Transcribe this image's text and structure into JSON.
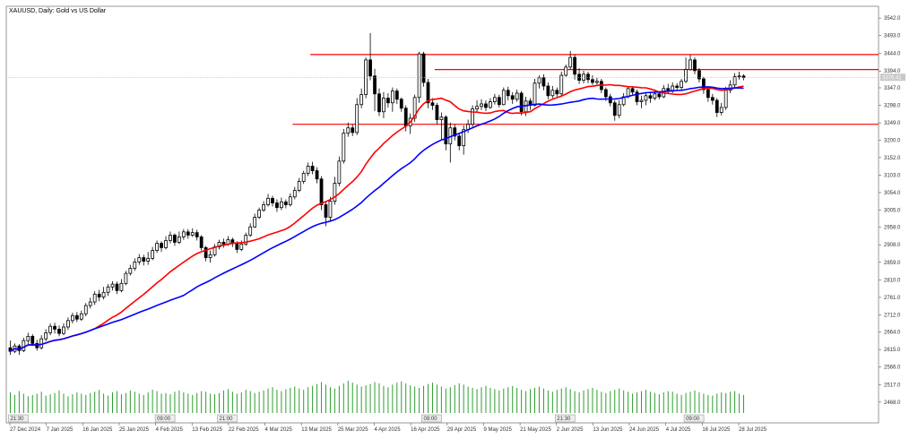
{
  "header": {
    "title": "XAUUSD, Daily:  Gold vs US Dollar"
  },
  "current_price_label": "3376.41",
  "time_markers": [
    "21:30",
    "09:00",
    "21:00",
    "09:00",
    "21:30",
    "09:00"
  ],
  "chart_data": {
    "type": "candlestick",
    "title": "XAUUSD, Daily:  Gold vs US Dollar",
    "x_ticks": [
      "27 Dec 2024",
      "7 Jan 2025",
      "16 Jan 2025",
      "25 Jan 2025",
      "4 Feb 2025",
      "13 Feb 2025",
      "22 Feb 2025",
      "4 Mar 2025",
      "13 Mar 2025",
      "25 Mar 2025",
      "4 Apr 2025",
      "16 Apr 2025",
      "29 Apr 2025",
      "9 May 2025",
      "21 May 2025",
      "2 Jun 2025",
      "13 Jun 2025",
      "24 Jun 2025",
      "4 Jul 2025",
      "16 Jul 2025",
      "28 Jul 2025"
    ],
    "y_ticks": [
      3542.0,
      3493.0,
      3444.0,
      3394.0,
      3347.0,
      3298.0,
      3249.0,
      3200.0,
      3152.0,
      3103.0,
      3054.0,
      3005.0,
      2958.0,
      2908.0,
      2859.0,
      2810.0,
      2761.0,
      2712.0,
      2664.0,
      2615.0,
      2566.0,
      2517.0,
      2468.0
    ],
    "ylim": [
      2445,
      3570
    ],
    "horizontal_levels": [
      {
        "price": 3440,
        "from_index": 68,
        "color": "#ff0000"
      },
      {
        "price": 3398,
        "from_index": 96,
        "color": "#ff0000"
      },
      {
        "price": 3245,
        "from_index": 64,
        "color": "#ff0000"
      }
    ],
    "current_price": 3376.41,
    "series": [
      {
        "name": "",
        "type": "moving_average",
        "color": "#ff0000",
        "window": 20
      },
      {
        "name": "",
        "type": "moving_average",
        "color": "#0000ff",
        "window": 40
      }
    ],
    "candles": [
      {
        "date": "27 Dec 2024",
        "o": 2620,
        "h": 2640,
        "l": 2600,
        "c": 2610
      },
      {
        "c": 2625,
        "h": 2632,
        "l": 2605
      },
      {
        "c": 2612,
        "h": 2630,
        "l": 2600
      },
      {
        "c": 2640,
        "h": 2648,
        "l": 2608
      },
      {
        "c": 2652,
        "h": 2662,
        "l": 2630
      },
      {
        "c": 2632,
        "h": 2658,
        "l": 2625
      },
      {
        "c": 2620,
        "h": 2642,
        "l": 2612
      },
      {
        "c": 2645,
        "h": 2655,
        "l": 2615
      },
      {
        "c": 2662,
        "h": 2672,
        "l": 2638
      },
      {
        "c": 2680,
        "h": 2688,
        "l": 2655
      },
      {
        "c": 2672,
        "h": 2690,
        "l": 2660
      },
      {
        "c": 2660,
        "h": 2682,
        "l": 2652
      },
      {
        "c": 2678,
        "h": 2688,
        "l": 2655
      },
      {
        "c": 2696,
        "h": 2705,
        "l": 2670
      },
      {
        "c": 2710,
        "h": 2718,
        "l": 2688
      },
      {
        "c": 2700,
        "h": 2720,
        "l": 2692
      },
      {
        "c": 2715,
        "h": 2724,
        "l": 2695
      },
      {
        "c": 2738,
        "h": 2745,
        "l": 2708
      },
      {
        "c": 2748,
        "h": 2760,
        "l": 2730
      },
      {
        "c": 2770,
        "h": 2778,
        "l": 2740
      },
      {
        "c": 2762,
        "h": 2782,
        "l": 2750
      },
      {
        "c": 2775,
        "h": 2790,
        "l": 2755
      },
      {
        "c": 2790,
        "h": 2798,
        "l": 2765
      },
      {
        "c": 2798,
        "h": 2806,
        "l": 2780
      },
      {
        "c": 2780,
        "h": 2805,
        "l": 2770
      },
      {
        "c": 2800,
        "h": 2812,
        "l": 2775
      },
      {
        "c": 2828,
        "h": 2835,
        "l": 2795
      },
      {
        "c": 2842,
        "h": 2852,
        "l": 2822
      },
      {
        "c": 2860,
        "h": 2870,
        "l": 2835
      },
      {
        "c": 2872,
        "h": 2882,
        "l": 2852
      },
      {
        "c": 2862,
        "h": 2880,
        "l": 2850
      },
      {
        "c": 2870,
        "h": 2888,
        "l": 2852
      },
      {
        "c": 2892,
        "h": 2902,
        "l": 2865
      },
      {
        "c": 2912,
        "h": 2920,
        "l": 2885
      },
      {
        "c": 2900,
        "h": 2918,
        "l": 2888
      },
      {
        "c": 2920,
        "h": 2932,
        "l": 2895
      },
      {
        "c": 2935,
        "h": 2945,
        "l": 2912
      },
      {
        "c": 2915,
        "h": 2940,
        "l": 2905
      },
      {
        "c": 2930,
        "h": 2945,
        "l": 2910
      },
      {
        "c": 2944,
        "h": 2952,
        "l": 2922
      },
      {
        "c": 2935,
        "h": 2952,
        "l": 2925
      },
      {
        "c": 2942,
        "h": 2954,
        "l": 2930
      },
      {
        "c": 2930,
        "h": 2950,
        "l": 2920
      },
      {
        "c": 2900,
        "h": 2935,
        "l": 2892
      },
      {
        "c": 2872,
        "h": 2905,
        "l": 2862
      },
      {
        "c": 2880,
        "h": 2892,
        "l": 2858
      },
      {
        "c": 2902,
        "h": 2910,
        "l": 2875
      },
      {
        "c": 2915,
        "h": 2922,
        "l": 2895
      },
      {
        "c": 2910,
        "h": 2925,
        "l": 2900
      },
      {
        "c": 2922,
        "h": 2932,
        "l": 2905
      },
      {
        "c": 2912,
        "h": 2928,
        "l": 2902
      },
      {
        "c": 2895,
        "h": 2918,
        "l": 2885
      },
      {
        "c": 2910,
        "h": 2920,
        "l": 2890
      },
      {
        "c": 2935,
        "h": 2942,
        "l": 2905
      },
      {
        "c": 2958,
        "h": 2968,
        "l": 2930
      },
      {
        "c": 2985,
        "h": 2995,
        "l": 2955
      },
      {
        "c": 3005,
        "h": 3012,
        "l": 2980
      },
      {
        "c": 3020,
        "h": 3030,
        "l": 3000
      },
      {
        "c": 3038,
        "h": 3050,
        "l": 3015
      },
      {
        "c": 3025,
        "h": 3045,
        "l": 3015
      },
      {
        "c": 3012,
        "h": 3035,
        "l": 3000
      },
      {
        "c": 3028,
        "h": 3040,
        "l": 3005
      },
      {
        "c": 3020,
        "h": 3035,
        "l": 3010
      },
      {
        "c": 3042,
        "h": 3052,
        "l": 3015
      },
      {
        "c": 3060,
        "h": 3070,
        "l": 3035
      },
      {
        "c": 3085,
        "h": 3095,
        "l": 3055
      },
      {
        "c": 3108,
        "h": 3115,
        "l": 3078
      },
      {
        "c": 3128,
        "h": 3138,
        "l": 3100
      },
      {
        "c": 3115,
        "h": 3140,
        "l": 3105
      },
      {
        "c": 3092,
        "h": 3125,
        "l": 3080
      },
      {
        "c": 3020,
        "h": 3100,
        "l": 3005
      },
      {
        "c": 2985,
        "h": 3030,
        "l": 2960
      },
      {
        "c": 3030,
        "h": 3042,
        "l": 2975
      },
      {
        "c": 3080,
        "h": 3098,
        "l": 3020
      },
      {
        "c": 3142,
        "h": 3155,
        "l": 3072
      },
      {
        "c": 3220,
        "h": 3232,
        "l": 3135
      },
      {
        "c": 3235,
        "h": 3250,
        "l": 3210
      },
      {
        "c": 3222,
        "h": 3245,
        "l": 3212
      },
      {
        "c": 3300,
        "h": 3318,
        "l": 3215
      },
      {
        "c": 3328,
        "h": 3345,
        "l": 3290
      },
      {
        "c": 3425,
        "h": 3432,
        "l": 3318
      },
      {
        "c": 3380,
        "h": 3500,
        "l": 3368
      },
      {
        "c": 3330,
        "h": 3400,
        "l": 3282
      },
      {
        "c": 3280,
        "h": 3345,
        "l": 3268
      },
      {
        "c": 3318,
        "h": 3335,
        "l": 3262
      },
      {
        "c": 3305,
        "h": 3332,
        "l": 3292
      },
      {
        "c": 3338,
        "h": 3348,
        "l": 3280
      },
      {
        "c": 3315,
        "h": 3345,
        "l": 3302
      },
      {
        "c": 3290,
        "h": 3320,
        "l": 3280
      },
      {
        "c": 3240,
        "h": 3298,
        "l": 3225
      },
      {
        "c": 3262,
        "h": 3275,
        "l": 3218
      },
      {
        "c": 3320,
        "h": 3328,
        "l": 3252
      },
      {
        "c": 3442,
        "h": 3448,
        "l": 3305
      },
      {
        "c": 3362,
        "h": 3448,
        "l": 3350
      },
      {
        "c": 3305,
        "h": 3372,
        "l": 3290
      },
      {
        "c": 3298,
        "h": 3318,
        "l": 3285
      },
      {
        "c": 3258,
        "h": 3305,
        "l": 3245
      },
      {
        "c": 3265,
        "h": 3278,
        "l": 3200
      },
      {
        "c": 3190,
        "h": 3270,
        "l": 3172
      },
      {
        "c": 3235,
        "h": 3250,
        "l": 3138
      },
      {
        "c": 3212,
        "h": 3245,
        "l": 3200
      },
      {
        "c": 3185,
        "h": 3222,
        "l": 3172
      },
      {
        "c": 3230,
        "h": 3242,
        "l": 3160
      },
      {
        "c": 3245,
        "h": 3258,
        "l": 3220
      },
      {
        "c": 3288,
        "h": 3298,
        "l": 3238
      },
      {
        "c": 3295,
        "h": 3312,
        "l": 3280
      },
      {
        "c": 3302,
        "h": 3315,
        "l": 3285
      },
      {
        "c": 3292,
        "h": 3312,
        "l": 3282
      },
      {
        "c": 3308,
        "h": 3318,
        "l": 3288
      },
      {
        "c": 3320,
        "h": 3330,
        "l": 3300
      },
      {
        "c": 3300,
        "h": 3328,
        "l": 3292
      },
      {
        "c": 3340,
        "h": 3348,
        "l": 3298
      },
      {
        "c": 3325,
        "h": 3350,
        "l": 3312
      },
      {
        "c": 3315,
        "h": 3335,
        "l": 3302
      },
      {
        "c": 3332,
        "h": 3342,
        "l": 3308
      },
      {
        "c": 3280,
        "h": 3338,
        "l": 3270
      },
      {
        "c": 3310,
        "h": 3322,
        "l": 3268
      },
      {
        "c": 3298,
        "h": 3318,
        "l": 3285
      },
      {
        "c": 3360,
        "h": 3372,
        "l": 3295
      },
      {
        "c": 3375,
        "h": 3382,
        "l": 3345
      },
      {
        "c": 3352,
        "h": 3385,
        "l": 3340
      },
      {
        "c": 3325,
        "h": 3362,
        "l": 3315
      },
      {
        "c": 3340,
        "h": 3352,
        "l": 3318
      },
      {
        "c": 3330,
        "h": 3348,
        "l": 3322
      },
      {
        "c": 3382,
        "h": 3392,
        "l": 3325
      },
      {
        "c": 3405,
        "h": 3412,
        "l": 3378
      },
      {
        "c": 3432,
        "h": 3450,
        "l": 3398
      },
      {
        "c": 3385,
        "h": 3440,
        "l": 3370
      },
      {
        "c": 3368,
        "h": 3402,
        "l": 3358
      },
      {
        "c": 3385,
        "h": 3395,
        "l": 3360
      },
      {
        "c": 3370,
        "h": 3392,
        "l": 3360
      },
      {
        "c": 3362,
        "h": 3382,
        "l": 3355
      },
      {
        "c": 3365,
        "h": 3375,
        "l": 3355
      },
      {
        "c": 3342,
        "h": 3372,
        "l": 3332
      },
      {
        "c": 3322,
        "h": 3348,
        "l": 3310
      },
      {
        "c": 3305,
        "h": 3330,
        "l": 3295
      },
      {
        "c": 3270,
        "h": 3312,
        "l": 3255
      },
      {
        "c": 3300,
        "h": 3312,
        "l": 3262
      },
      {
        "c": 3322,
        "h": 3332,
        "l": 3295
      },
      {
        "c": 3345,
        "h": 3352,
        "l": 3318
      },
      {
        "c": 3335,
        "h": 3352,
        "l": 3325
      },
      {
        "c": 3308,
        "h": 3342,
        "l": 3298
      },
      {
        "c": 3312,
        "h": 3325,
        "l": 3290
      },
      {
        "c": 3325,
        "h": 3335,
        "l": 3298
      },
      {
        "c": 3318,
        "h": 3332,
        "l": 3305
      },
      {
        "c": 3330,
        "h": 3342,
        "l": 3312
      },
      {
        "c": 3322,
        "h": 3338,
        "l": 3315
      },
      {
        "c": 3345,
        "h": 3355,
        "l": 3318
      },
      {
        "c": 3340,
        "h": 3358,
        "l": 3330
      },
      {
        "c": 3352,
        "h": 3362,
        "l": 3332
      },
      {
        "c": 3348,
        "h": 3360,
        "l": 3338
      },
      {
        "c": 3365,
        "h": 3372,
        "l": 3342
      },
      {
        "c": 3398,
        "h": 3432,
        "l": 3360
      },
      {
        "c": 3425,
        "h": 3440,
        "l": 3395
      },
      {
        "c": 3395,
        "h": 3432,
        "l": 3385
      },
      {
        "c": 3372,
        "h": 3402,
        "l": 3362
      },
      {
        "c": 3342,
        "h": 3378,
        "l": 3330
      },
      {
        "c": 3320,
        "h": 3348,
        "l": 3308
      },
      {
        "c": 3312,
        "h": 3330,
        "l": 3300
      },
      {
        "c": 3278,
        "h": 3318,
        "l": 3265
      },
      {
        "c": 3292,
        "h": 3305,
        "l": 3270
      },
      {
        "c": 3340,
        "h": 3350,
        "l": 3285
      },
      {
        "c": 3355,
        "h": 3368,
        "l": 3332
      },
      {
        "c": 3378,
        "h": 3388,
        "l": 3345
      },
      {
        "c": 3380,
        "h": 3392,
        "l": 3370
      },
      {
        "c": 3376,
        "h": 3385,
        "l": 3368
      }
    ],
    "volumes": [
      32,
      28,
      34,
      30,
      26,
      28,
      30,
      33,
      27,
      29,
      31,
      35,
      30,
      26,
      29,
      32,
      30,
      28,
      31,
      33,
      36,
      30,
      27,
      32,
      34,
      29,
      31,
      35,
      33,
      30,
      28,
      32,
      36,
      34,
      30,
      31,
      29,
      33,
      35,
      32,
      30,
      28,
      31,
      34,
      33,
      30,
      29,
      31,
      35,
      37,
      33,
      30,
      32,
      36,
      34,
      31,
      33,
      35,
      38,
      40,
      36,
      34,
      37,
      39,
      41,
      38,
      36,
      40,
      42,
      45,
      48,
      44,
      40,
      38,
      42,
      46,
      50,
      47,
      44,
      41,
      43,
      45,
      48,
      46,
      42,
      40,
      44,
      47,
      49,
      46,
      43,
      41,
      39,
      42,
      45,
      47,
      44,
      41,
      38,
      40,
      43,
      46,
      44,
      41,
      39,
      37,
      40,
      42,
      39,
      37,
      35,
      38,
      40,
      42,
      39,
      36,
      34,
      37,
      39,
      41,
      38,
      35,
      33,
      36,
      38,
      40,
      37,
      34,
      32,
      35,
      37,
      39,
      36,
      33,
      31,
      34,
      36,
      38,
      35,
      33,
      30,
      32,
      34,
      36,
      33,
      31,
      29,
      32,
      34,
      33,
      30,
      28,
      31,
      33,
      35,
      32,
      30,
      28,
      27,
      30,
      32,
      31,
      33,
      34,
      30,
      28
    ],
    "grid": false,
    "legend": "none"
  }
}
